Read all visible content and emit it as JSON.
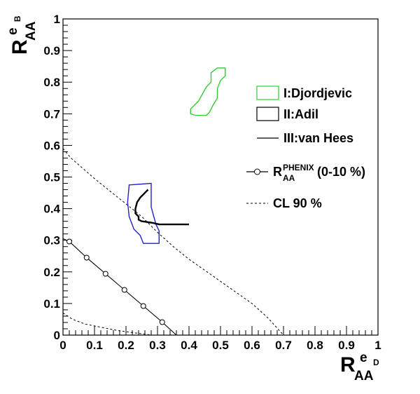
{
  "chart_data": {
    "type": "line",
    "xlim": [
      0,
      1
    ],
    "ylim": [
      0,
      1
    ],
    "x_ticks": [
      "0",
      "0.1",
      "0.2",
      "0.3",
      "0.4",
      "0.5",
      "0.6",
      "0.7",
      "0.8",
      "0.9",
      "1"
    ],
    "y_ticks": [
      "0",
      "0.1",
      "0.2",
      "0.3",
      "0.4",
      "0.5",
      "0.6",
      "0.7",
      "0.8",
      "0.9",
      "1"
    ],
    "xlabel": {
      "main": "R",
      "sub": "AA",
      "sup": "e",
      "sup_sub": "D"
    },
    "ylabel": {
      "main": "R",
      "sub": "AA",
      "sup": "e",
      "sup_sub": "B"
    },
    "legend_placement": "right",
    "legend": [
      {
        "label": "I:Djordjevic",
        "symbol": "box",
        "color": "#33cc33"
      },
      {
        "label": "II:Adil",
        "symbol": "box",
        "color": "#000000"
      },
      {
        "label": "III:van Hees",
        "symbol": "line",
        "color": "#000000"
      },
      {
        "label_main": "R",
        "label_sup": "PHENIX",
        "label_sub": "AA",
        "label_suffix": "(0-10 %)",
        "symbol": "line-circle",
        "color": "#000000"
      },
      {
        "label": "CL 90 %",
        "symbol": "dashed",
        "color": "#000000"
      }
    ],
    "series": [
      {
        "label_key": "djordjevic",
        "style": "closed-contour",
        "color": "#33cc33",
        "points": [
          [
            0.405,
            0.7
          ],
          [
            0.405,
            0.715
          ],
          [
            0.43,
            0.74
          ],
          [
            0.455,
            0.785
          ],
          [
            0.47,
            0.8
          ],
          [
            0.47,
            0.83
          ],
          [
            0.49,
            0.845
          ],
          [
            0.515,
            0.845
          ],
          [
            0.515,
            0.82
          ],
          [
            0.5,
            0.805
          ],
          [
            0.49,
            0.78
          ],
          [
            0.49,
            0.75
          ],
          [
            0.475,
            0.725
          ],
          [
            0.465,
            0.705
          ],
          [
            0.455,
            0.695
          ],
          [
            0.42,
            0.695
          ],
          [
            0.405,
            0.7
          ]
        ]
      },
      {
        "label_key": "adil",
        "style": "closed-contour",
        "color": "#2222cc",
        "points": [
          [
            0.21,
            0.475
          ],
          [
            0.28,
            0.48
          ],
          [
            0.28,
            0.405
          ],
          [
            0.295,
            0.35
          ],
          [
            0.305,
            0.33
          ],
          [
            0.305,
            0.29
          ],
          [
            0.255,
            0.29
          ],
          [
            0.245,
            0.315
          ],
          [
            0.225,
            0.335
          ],
          [
            0.21,
            0.375
          ],
          [
            0.205,
            0.42
          ],
          [
            0.21,
            0.475
          ]
        ]
      },
      {
        "label_key": "van_hees",
        "style": "line",
        "color": "#000000",
        "points": [
          [
            0.27,
            0.46
          ],
          [
            0.255,
            0.445
          ],
          [
            0.245,
            0.435
          ],
          [
            0.235,
            0.42
          ],
          [
            0.23,
            0.4
          ],
          [
            0.23,
            0.385
          ],
          [
            0.24,
            0.375
          ],
          [
            0.24,
            0.365
          ],
          [
            0.25,
            0.36
          ],
          [
            0.285,
            0.355
          ],
          [
            0.305,
            0.35
          ],
          [
            0.4,
            0.35
          ]
        ]
      },
      {
        "label_key": "phenix",
        "style": "line-circle",
        "color": "#000000",
        "points": [
          [
            0.0,
            0.305
          ],
          [
            0.02,
            0.296
          ],
          [
            0.075,
            0.245
          ],
          [
            0.135,
            0.194
          ],
          [
            0.195,
            0.143
          ],
          [
            0.255,
            0.092
          ],
          [
            0.315,
            0.041
          ],
          [
            0.36,
            0.0
          ]
        ],
        "markers_x": [
          0.02,
          0.075,
          0.135,
          0.195,
          0.255,
          0.315
        ]
      },
      {
        "label_key": "cl90_upper",
        "style": "dashed",
        "color": "#000000",
        "points": [
          [
            0.0,
            0.59
          ],
          [
            0.025,
            0.56
          ],
          [
            0.06,
            0.53
          ],
          [
            0.1,
            0.495
          ],
          [
            0.15,
            0.455
          ],
          [
            0.2,
            0.415
          ],
          [
            0.25,
            0.375
          ],
          [
            0.3,
            0.325
          ],
          [
            0.35,
            0.28
          ],
          [
            0.4,
            0.24
          ],
          [
            0.45,
            0.205
          ],
          [
            0.5,
            0.17
          ],
          [
            0.55,
            0.135
          ],
          [
            0.6,
            0.1
          ],
          [
            0.65,
            0.055
          ],
          [
            0.7,
            0.0
          ]
        ]
      },
      {
        "label_key": "cl90_lower",
        "style": "dashed",
        "color": "#000000",
        "points": [
          [
            0.0,
            0.07
          ],
          [
            0.03,
            0.05
          ],
          [
            0.07,
            0.035
          ],
          [
            0.12,
            0.025
          ],
          [
            0.17,
            0.015
          ],
          [
            0.22,
            0.008
          ],
          [
            0.26,
            0.003
          ],
          [
            0.28,
            0.0
          ]
        ]
      }
    ]
  }
}
